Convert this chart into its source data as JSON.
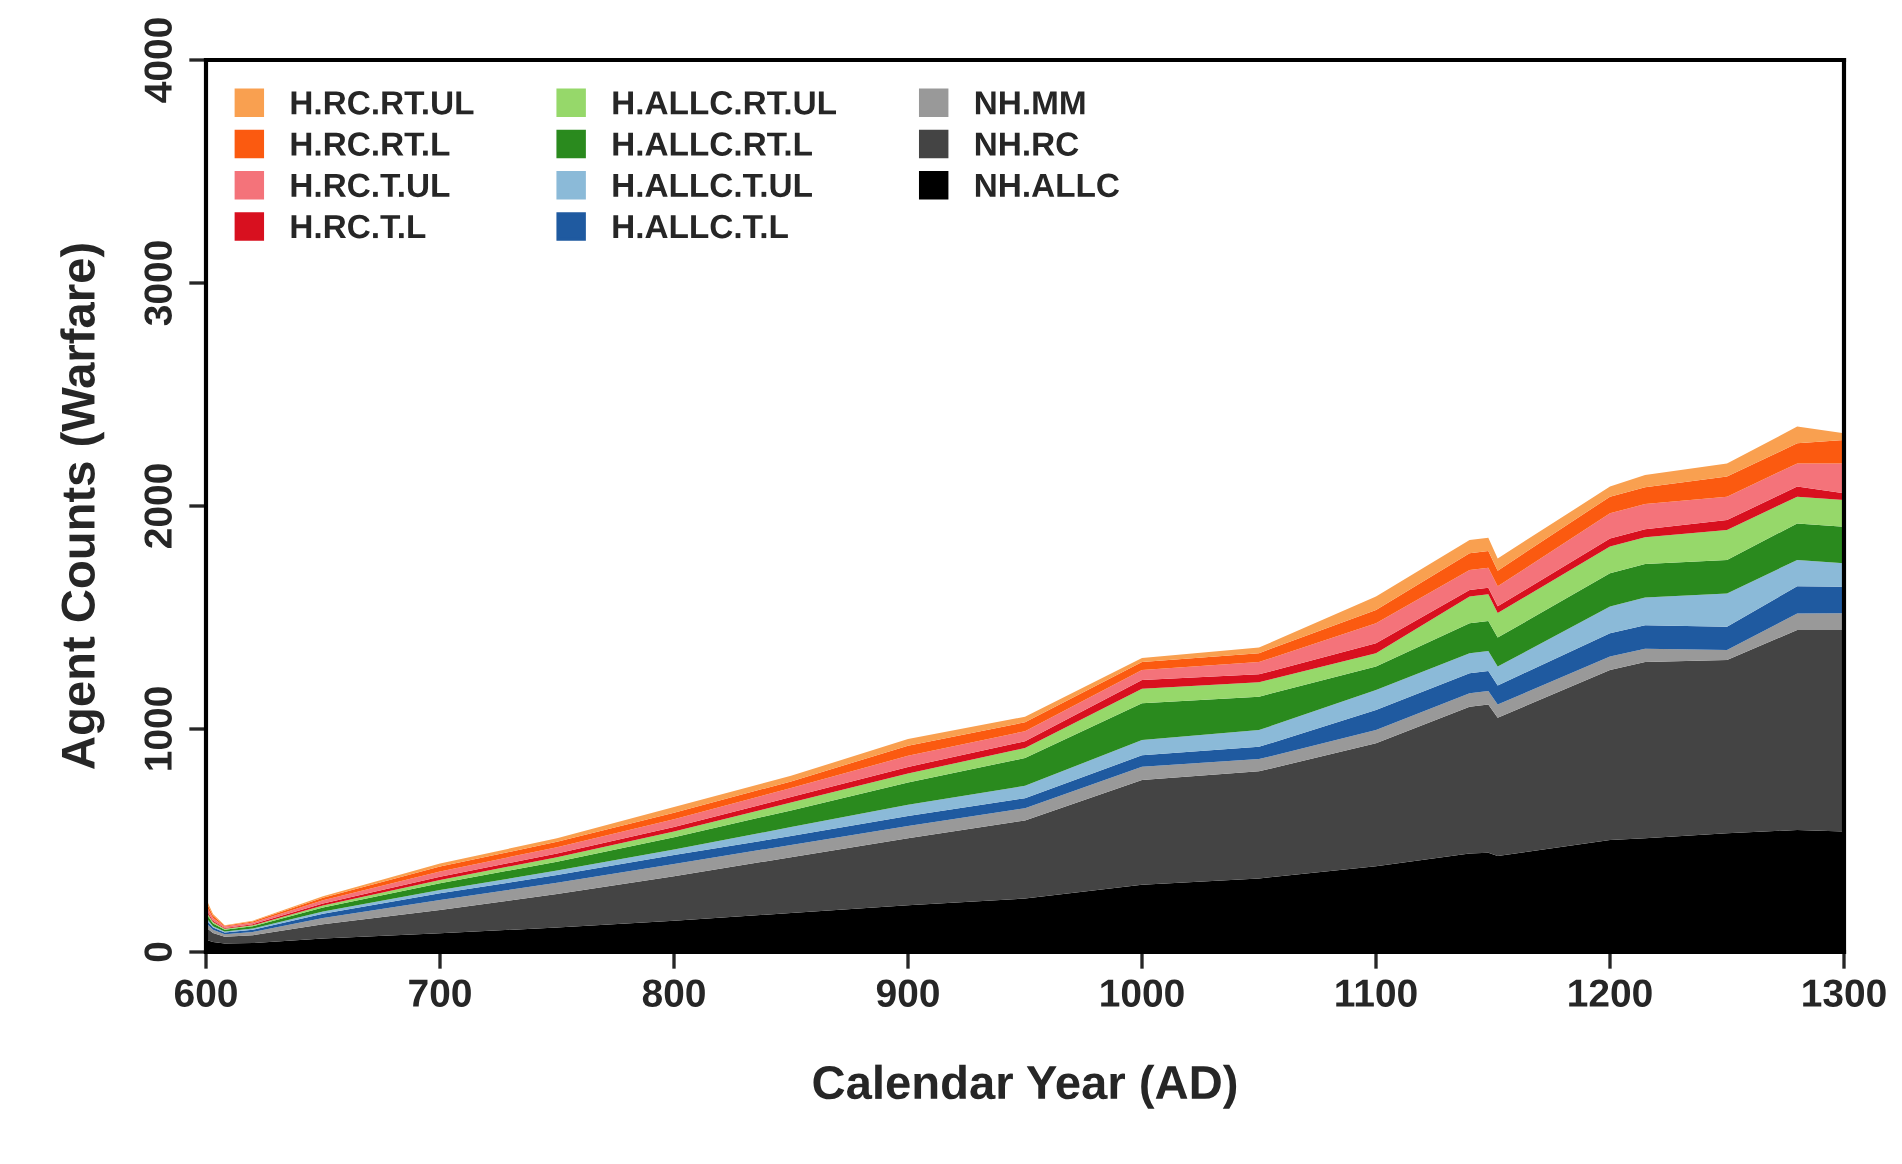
{
  "chart_data": {
    "type": "area",
    "stacked": true,
    "xlabel": "Calendar Year (AD)",
    "ylabel": "Agent Counts (Warfare)",
    "x": [
      600,
      603,
      608,
      620,
      650,
      700,
      750,
      800,
      850,
      900,
      950,
      1000,
      1050,
      1100,
      1140,
      1148,
      1152,
      1200,
      1215,
      1250,
      1280,
      1300
    ],
    "series": [
      {
        "name": "NH.ALLC",
        "color": "#000000",
        "values": [
          55,
          45,
          38,
          40,
          60,
          84,
          110,
          140,
          175,
          210,
          240,
          302,
          330,
          385,
          442,
          445,
          430,
          502,
          510,
          532,
          547,
          540
        ]
      },
      {
        "name": "NH.RC",
        "color": "#444444",
        "values": [
          55,
          40,
          30,
          35,
          65,
          104,
          150,
          200,
          250,
          300,
          350,
          469,
          480,
          551,
          658,
          665,
          620,
          763,
          790,
          777,
          897,
          904
        ]
      },
      {
        "name": "NH.MM",
        "color": "#999999",
        "values": [
          20,
          15,
          12,
          15,
          27,
          45,
          50,
          55,
          55,
          55,
          55,
          60,
          55,
          59,
          60,
          60,
          60,
          60,
          60,
          45,
          74,
          75
        ]
      },
      {
        "name": "H.ALLC.T.L",
        "color": "#1f5aa0",
        "values": [
          15,
          10,
          8,
          10,
          20,
          30,
          35,
          40,
          40,
          45,
          45,
          51,
          55,
          90,
          90,
          90,
          85,
          104,
          105,
          105,
          122,
          119
        ]
      },
      {
        "name": "H.ALLC.T.UL",
        "color": "#8bbad8",
        "values": [
          10,
          6,
          4,
          5,
          10,
          15,
          20,
          25,
          40,
          50,
          55,
          69,
          75,
          90,
          90,
          90,
          85,
          120,
          125,
          149,
          118,
          105
        ]
      },
      {
        "name": "H.ALLC.RT.L",
        "color": "#2a8a1e",
        "values": [
          18,
          12,
          8,
          10,
          18,
          30,
          40,
          55,
          75,
          100,
          125,
          164,
          150,
          105,
          134,
          134,
          130,
          149,
          150,
          150,
          164,
          164
        ]
      },
      {
        "name": "H.ALLC.RT.UL",
        "color": "#96d86a",
        "values": [
          10,
          6,
          4,
          5,
          9,
          15,
          20,
          25,
          35,
          40,
          45,
          66,
          65,
          60,
          120,
          120,
          110,
          120,
          120,
          134,
          120,
          120
        ]
      },
      {
        "name": "H.RC.T.L",
        "color": "#d8101f",
        "values": [
          10,
          6,
          4,
          5,
          9,
          15,
          17,
          20,
          25,
          30,
          30,
          39,
          35,
          44,
          29,
          29,
          30,
          36,
          36,
          45,
          45,
          30
        ]
      },
      {
        "name": "H.RC.T.UL",
        "color": "#f4737a",
        "values": [
          17,
          12,
          6,
          7,
          14,
          23,
          28,
          35,
          40,
          50,
          45,
          45,
          55,
          90,
          90,
          90,
          90,
          113,
          113,
          105,
          104,
          134
        ]
      },
      {
        "name": "H.RC.RT.L",
        "color": "#fb5a10",
        "values": [
          15,
          10,
          4,
          5,
          11,
          22,
          24,
          30,
          30,
          45,
          40,
          35,
          40,
          60,
          75,
          75,
          70,
          75,
          75,
          90,
          90,
          105
        ]
      },
      {
        "name": "H.RC.RT.UL",
        "color": "#f9a050",
        "values": [
          15,
          8,
          2,
          3,
          7,
          14,
          16,
          25,
          25,
          30,
          25,
          18,
          25,
          60,
          60,
          60,
          55,
          45,
          55,
          59,
          75,
          30
        ]
      }
    ],
    "xlim": [
      600,
      1300
    ],
    "xticks": [
      600,
      700,
      800,
      900,
      1000,
      1100,
      1200,
      1300
    ],
    "ylim": [
      0,
      4000
    ],
    "yticks": [
      0,
      1000,
      2000,
      3000,
      4000
    ],
    "legend": "top left",
    "grid": false
  }
}
